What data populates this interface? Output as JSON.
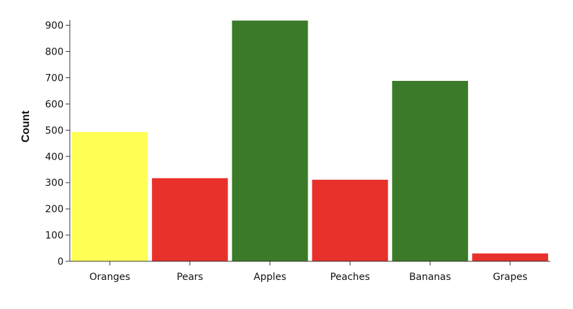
{
  "chart_data": {
    "type": "bar",
    "title": "",
    "xlabel": "",
    "ylabel": "Count",
    "categories": [
      "Oranges",
      "Pears",
      "Apples",
      "Peaches",
      "Bananas",
      "Grapes"
    ],
    "values": [
      493,
      317,
      918,
      311,
      688,
      30
    ],
    "colors": [
      "#ffff55",
      "#e8312a",
      "#3a7a28",
      "#e8312a",
      "#3a7a28",
      "#e8312a"
    ],
    "ylim": [
      0,
      920
    ],
    "yticks": [
      0,
      100,
      200,
      300,
      400,
      500,
      600,
      700,
      800,
      900
    ],
    "grid": false,
    "legend": "none"
  }
}
